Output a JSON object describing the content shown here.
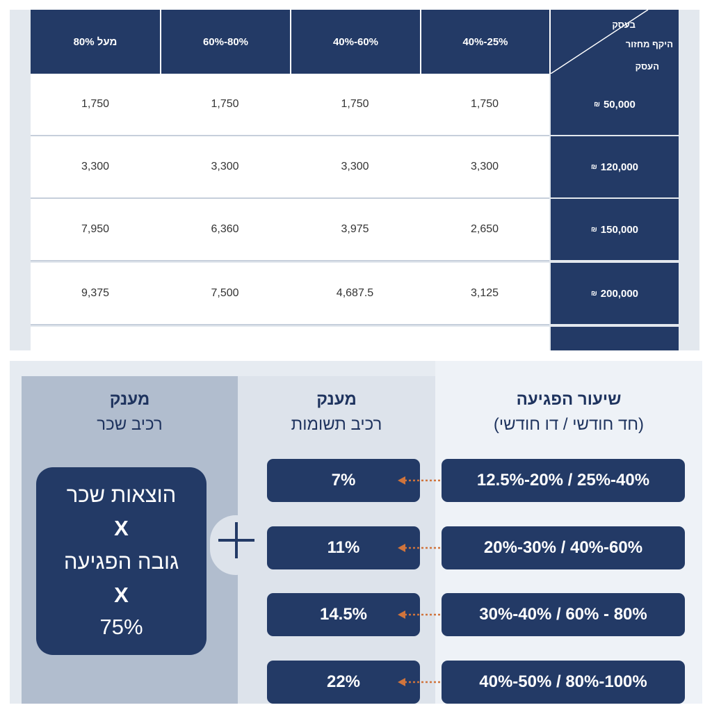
{
  "table": {
    "corner": {
      "line1": "בעסק",
      "line2": "היקף מחזור",
      "line3": "העסק"
    },
    "headers": [
      "מעל 80%",
      "60%-80%",
      "40%-60%",
      "40%-25%"
    ],
    "currency_symbol": "₪",
    "rows": [
      {
        "turnover": "50,000",
        "values": [
          "1,750",
          "1,750",
          "1,750",
          "1,750"
        ]
      },
      {
        "turnover": "120,000",
        "values": [
          "3,300",
          "3,300",
          "3,300",
          "3,300"
        ]
      },
      {
        "turnover": "150,000",
        "values": [
          "7,950",
          "6,360",
          "3,975",
          "2,650"
        ]
      },
      {
        "turnover": "200,000",
        "values": [
          "9,375",
          "7,500",
          "4,687.5",
          "3,125"
        ]
      }
    ]
  },
  "bottom": {
    "rate_title": "שיעור הפגיעה",
    "rate_subtitle": "(חד חודשי / דו חודשי)",
    "inputs_title": "מענק",
    "inputs_subtitle": "רכיב תשומות",
    "salary_title": "מענק",
    "salary_subtitle": "רכיב שכר",
    "rates": [
      "12.5%-20% / 25%-40%",
      "20%-30% / 40%-60%",
      "30%-40% / 60% - 80%",
      "40%-50% / 80%-100%"
    ],
    "grants": [
      "7%",
      "11%",
      "14.5%",
      "22%"
    ],
    "formula": {
      "line1": "הוצאות שכר",
      "op1": "X",
      "line2": "גובה הפגיעה",
      "op2": "X",
      "line3": "75%"
    }
  },
  "colors": {
    "navy": "#233a66",
    "arrow_orange": "#d0743c",
    "panel_gray": "#b1bdce"
  }
}
